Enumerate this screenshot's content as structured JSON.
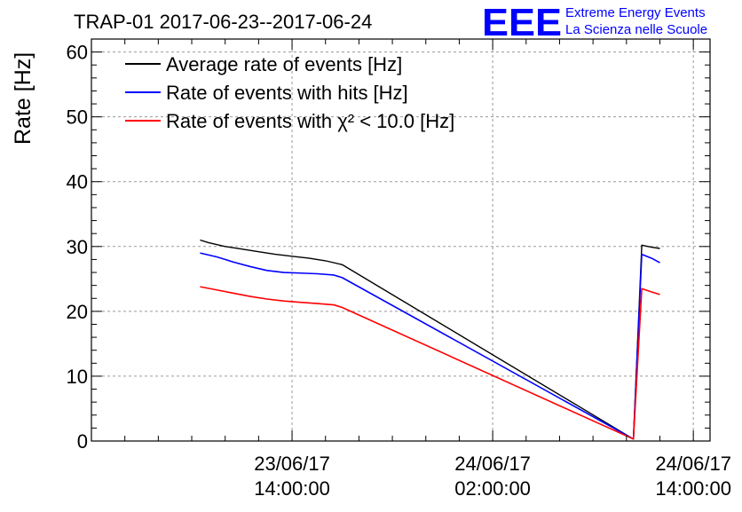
{
  "chart_data": {
    "type": "line",
    "title": "TRAP-01 2017-06-23--2017-06-24",
    "xlabel": "",
    "ylabel": "Rate [Hz]",
    "xlim": [
      "2017-06-23 02:00:00",
      "2017-06-24 15:00:00"
    ],
    "ylim": [
      0,
      62
    ],
    "yticks": [
      0,
      10,
      20,
      30,
      40,
      50,
      60
    ],
    "xticks": [
      {
        "x": "2017-06-23 14:00:00",
        "date": "23/06/17",
        "time": "14:00:00"
      },
      {
        "x": "2017-06-24 02:00:00",
        "date": "24/06/17",
        "time": "02:00:00"
      },
      {
        "x": "2017-06-24 14:00:00",
        "date": "24/06/17",
        "time": "14:00:00"
      }
    ],
    "grid": true,
    "legend_position": "top-left",
    "series": [
      {
        "name": "Average rate of events [Hz]",
        "color": "#000000",
        "x": [
          "2017-06-23 08:30",
          "2017-06-23 09:00",
          "2017-06-23 10:00",
          "2017-06-23 11:00",
          "2017-06-23 12:00",
          "2017-06-23 13:00",
          "2017-06-23 14:00",
          "2017-06-23 15:00",
          "2017-06-23 16:00",
          "2017-06-23 17:00",
          "2017-06-24 10:25",
          "2017-06-24 10:55",
          "2017-06-24 11:30",
          "2017-06-24 12:00"
        ],
        "y": [
          31.0,
          30.6,
          30.0,
          29.6,
          29.2,
          28.8,
          28.5,
          28.2,
          27.8,
          27.2,
          0.3,
          30.2,
          29.9,
          29.7
        ]
      },
      {
        "name": "Rate of events with hits [Hz]",
        "color": "#0000ff",
        "x": [
          "2017-06-23 08:30",
          "2017-06-23 09:30",
          "2017-06-23 10:30",
          "2017-06-23 11:30",
          "2017-06-23 12:30",
          "2017-06-23 13:30",
          "2017-06-23 14:30",
          "2017-06-23 15:30",
          "2017-06-23 16:30",
          "2017-06-23 17:00",
          "2017-06-24 10:25",
          "2017-06-24 10:55",
          "2017-06-24 11:30",
          "2017-06-24 12:00"
        ],
        "y": [
          29.0,
          28.4,
          27.6,
          26.9,
          26.3,
          26.0,
          25.9,
          25.8,
          25.6,
          25.2,
          0.3,
          28.8,
          28.2,
          27.5
        ]
      },
      {
        "name": "Rate of events with χ² < 10.0 [Hz]",
        "color": "#ff0000",
        "x": [
          "2017-06-23 08:30",
          "2017-06-23 09:30",
          "2017-06-23 10:30",
          "2017-06-23 11:30",
          "2017-06-23 12:30",
          "2017-06-23 13:30",
          "2017-06-23 14:30",
          "2017-06-23 15:30",
          "2017-06-23 16:30",
          "2017-06-23 17:00",
          "2017-06-24 10:25",
          "2017-06-24 10:55",
          "2017-06-24 11:30",
          "2017-06-24 12:00"
        ],
        "y": [
          23.8,
          23.3,
          22.8,
          22.3,
          21.9,
          21.6,
          21.4,
          21.2,
          21.0,
          20.6,
          0.3,
          23.5,
          23.0,
          22.6
        ]
      }
    ]
  },
  "branding": {
    "logo_text": "EEE",
    "line1": "Extreme Energy Events",
    "line2": "La Scienza nelle Scuole",
    "color": "#0000ff"
  }
}
